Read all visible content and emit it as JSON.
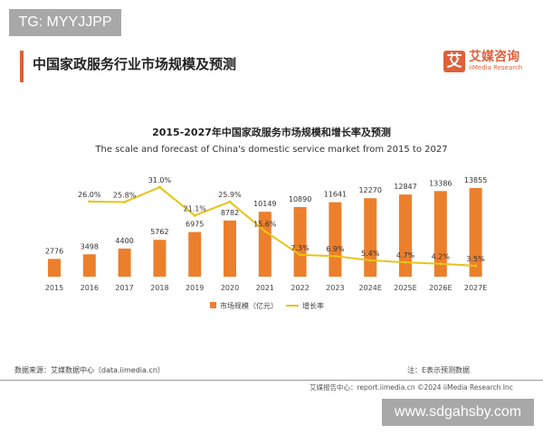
{
  "watermark_top": "TG: MYYJJPP",
  "watermark_bottom": "www.sdgahsby.com",
  "page_title": "中国家政服务行业市场规模及预测",
  "logo": {
    "cn": "艾媒咨询",
    "en": "iiMedia Research",
    "mark": "艾"
  },
  "source": "数据来源：艾媒数据中心（data.iimedia.cn）",
  "note": "注：E表示预测数据",
  "footer": "艾媒报告中心：report.iimedia.cn   ©2024  iiMedia Research  Inc",
  "colors": {
    "bar": "#ec7f2c",
    "line": "#e8c318",
    "accent": "#e0603a"
  },
  "chart_data": {
    "type": "bar+line",
    "title": "2015-2027年中国家政服务市场规模和增长率及预测",
    "subtitle": "The scale and forecast of China's domestic service market from 2015 to 2027",
    "categories": [
      "2015",
      "2016",
      "2017",
      "2018",
      "2019",
      "2020",
      "2021",
      "2022",
      "2023",
      "2024E",
      "2025E",
      "2026E",
      "2027E"
    ],
    "series": [
      {
        "name": "市场规模（亿元）",
        "type": "bar",
        "values": [
          2776,
          3498,
          4400,
          5762,
          6975,
          8782,
          10149,
          10890,
          11641,
          12270,
          12847,
          13386,
          13855
        ]
      },
      {
        "name": "增长率",
        "type": "line",
        "unit": "%",
        "values": [
          null,
          26.0,
          25.8,
          31.0,
          21.1,
          25.9,
          15.6,
          7.3,
          6.9,
          5.4,
          4.7,
          4.2,
          3.5
        ]
      }
    ],
    "legend": "bottom",
    "grid": false
  }
}
